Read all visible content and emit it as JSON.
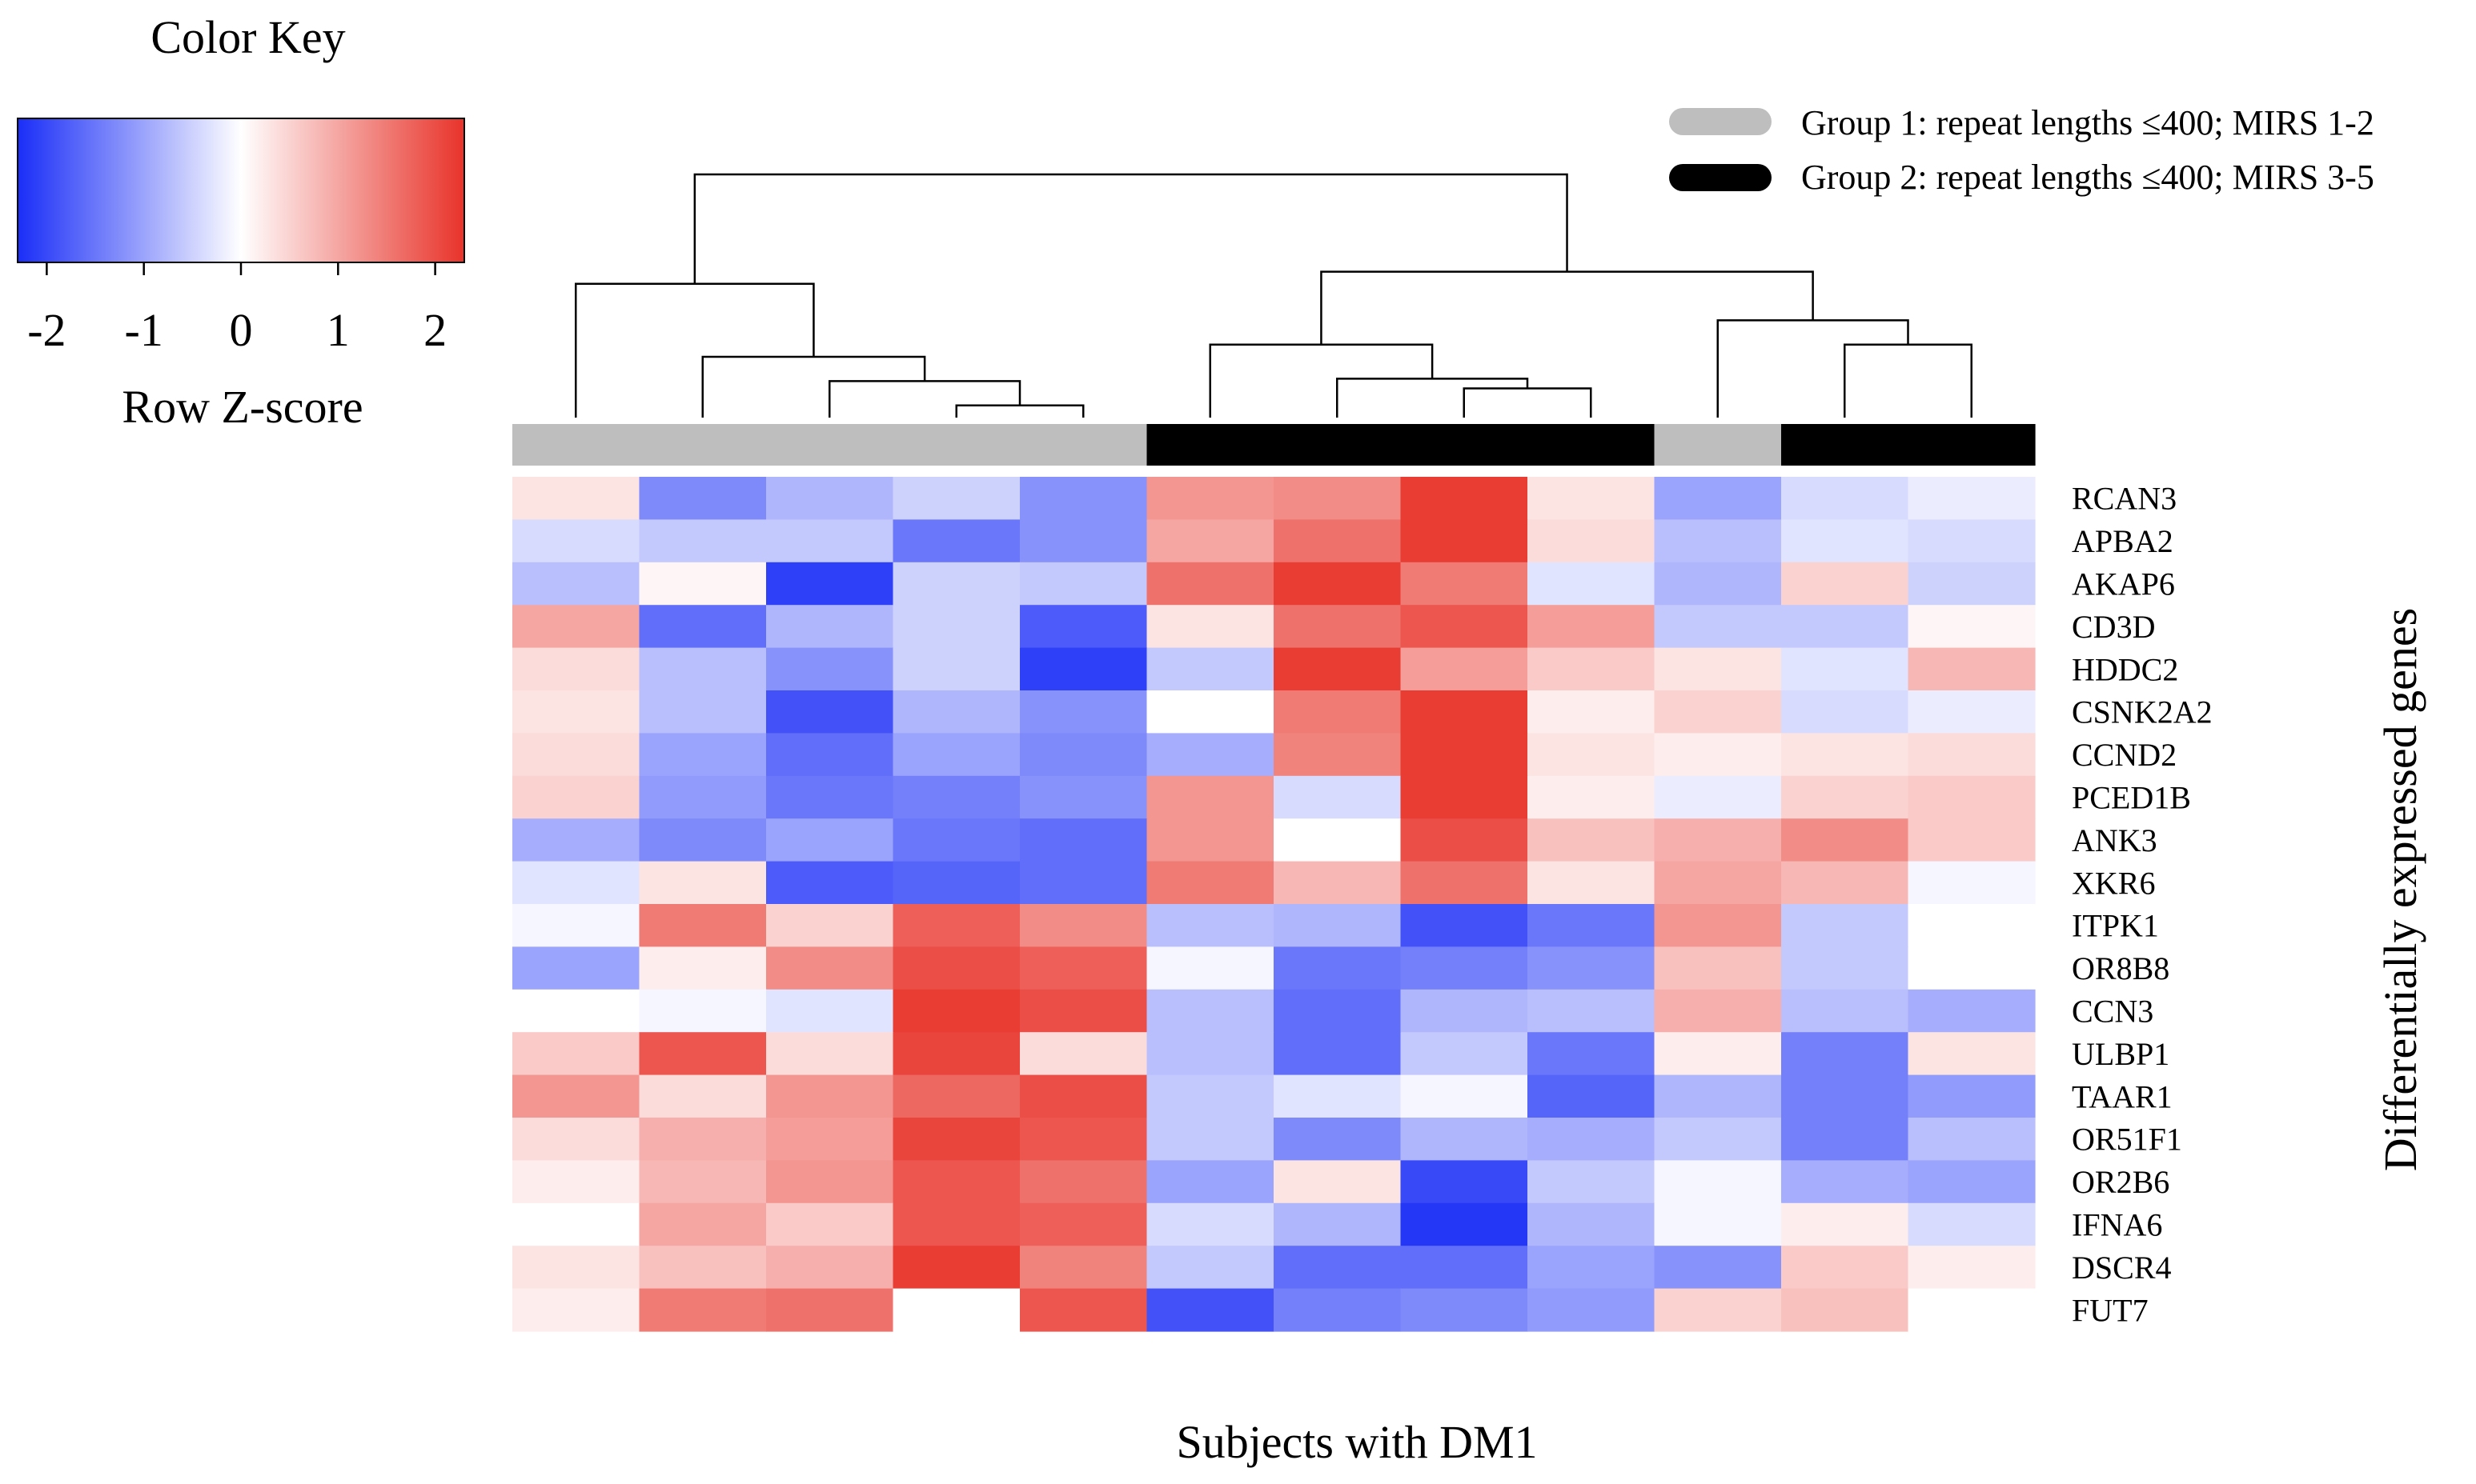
{
  "chart_data": {
    "type": "heatmap",
    "xlabel": "Subjects with DM1",
    "ylabel": "Differentially expressed genes",
    "color_key": {
      "title": "Color Key",
      "label": "Row Z-score",
      "ticks": [
        "-2",
        "-1",
        "0",
        "1",
        "2"
      ],
      "range": [
        -2.3,
        2.3
      ],
      "low_color": "#1a2ef7",
      "mid_color": "#ffffff",
      "high_color": "#e8332a"
    },
    "legend": [
      {
        "label": "Group 1: repeat lengths ≤400; MIRS 1-2",
        "color": "#bebebe"
      },
      {
        "label": "Group 2: repeat lengths ≤400; MIRS 3-5",
        "color": "#000000"
      }
    ],
    "column_groups": [
      1,
      1,
      1,
      1,
      1,
      2,
      2,
      2,
      2,
      1,
      2,
      2
    ],
    "genes": [
      "RCAN3",
      "APBA2",
      "AKAP6",
      "CD3D",
      "HDDC2",
      "CSNK2A2",
      "CCND2",
      "PCED1B",
      "ANK3",
      "XKR6",
      "ITPK1",
      "OR8B8",
      "CCN3",
      "ULBP1",
      "TAAR1",
      "OR51F1",
      "OR2B6",
      "IFNA6",
      "DSCR4",
      "FUT7"
    ],
    "values": [
      [
        0.3,
        -1.3,
        -0.8,
        -0.5,
        -1.2,
        1.2,
        1.3,
        2.2,
        0.3,
        -1.0,
        -0.4,
        -0.2
      ],
      [
        -0.4,
        -0.6,
        -0.6,
        -1.5,
        -1.2,
        1.0,
        1.6,
        2.2,
        0.4,
        -0.7,
        -0.3,
        -0.4
      ],
      [
        -0.7,
        0.1,
        -2.1,
        -0.5,
        -0.6,
        1.6,
        2.2,
        1.5,
        -0.3,
        -0.8,
        0.5,
        -0.5
      ],
      [
        1.0,
        -1.6,
        -0.8,
        -0.5,
        -1.8,
        0.3,
        1.6,
        1.9,
        1.1,
        -0.6,
        -0.6,
        0.1
      ],
      [
        0.4,
        -0.7,
        -1.2,
        -0.5,
        -2.1,
        -0.6,
        2.2,
        1.1,
        0.6,
        0.3,
        -0.3,
        0.8
      ],
      [
        0.3,
        -0.7,
        -1.9,
        -0.8,
        -1.2,
        0.0,
        1.5,
        2.2,
        0.2,
        0.5,
        -0.4,
        -0.2
      ],
      [
        0.4,
        -1.0,
        -1.6,
        -1.0,
        -1.3,
        -0.9,
        1.4,
        2.2,
        0.3,
        0.2,
        0.3,
        0.4
      ],
      [
        0.5,
        -1.1,
        -1.5,
        -1.4,
        -1.2,
        1.2,
        -0.4,
        2.2,
        0.2,
        -0.2,
        0.5,
        0.6
      ],
      [
        -0.9,
        -1.3,
        -1.0,
        -1.5,
        -1.6,
        1.2,
        0.0,
        2.0,
        0.7,
        0.9,
        1.3,
        0.6
      ],
      [
        -0.3,
        0.3,
        -1.8,
        -1.7,
        -1.6,
        1.5,
        0.8,
        1.6,
        0.3,
        1.0,
        0.8,
        -0.1
      ],
      [
        -0.1,
        1.5,
        0.5,
        1.8,
        1.3,
        -0.7,
        -0.8,
        -1.9,
        -1.5,
        1.2,
        -0.6,
        0.0
      ],
      [
        -1.0,
        0.2,
        1.3,
        2.0,
        1.8,
        -0.1,
        -1.5,
        -1.4,
        -1.2,
        0.7,
        -0.6,
        0.0
      ],
      [
        0.0,
        -0.1,
        -0.3,
        2.2,
        2.0,
        -0.7,
        -1.6,
        -0.8,
        -0.7,
        0.9,
        -0.7,
        -0.9
      ],
      [
        0.6,
        1.9,
        0.4,
        2.1,
        0.4,
        -0.7,
        -1.6,
        -0.6,
        -1.5,
        0.2,
        -1.4,
        0.3
      ],
      [
        1.2,
        0.4,
        1.2,
        1.7,
        2.0,
        -0.6,
        -0.3,
        -0.1,
        -1.7,
        -0.8,
        -1.4,
        -1.1
      ],
      [
        0.4,
        0.9,
        1.1,
        2.1,
        1.9,
        -0.6,
        -1.3,
        -0.8,
        -0.9,
        -0.6,
        -1.4,
        -0.7
      ],
      [
        0.2,
        0.8,
        1.2,
        1.9,
        1.6,
        -1.0,
        0.3,
        -2.0,
        -0.6,
        -0.1,
        -0.9,
        -1.0
      ],
      [
        0.0,
        1.0,
        0.6,
        1.9,
        1.8,
        -0.4,
        -0.8,
        -2.2,
        -0.8,
        -0.1,
        0.2,
        -0.4
      ],
      [
        0.3,
        0.7,
        0.9,
        2.2,
        1.4,
        -0.6,
        -1.6,
        -1.6,
        -1.0,
        -1.2,
        0.6,
        0.2
      ],
      [
        0.2,
        1.5,
        1.6,
        0.0,
        1.9,
        -1.9,
        -1.4,
        -1.3,
        -1.1,
        0.5,
        0.7,
        0.0
      ]
    ],
    "dendrogram": {
      "left": 0,
      "right": 1,
      "children": [
        {
          "left": 0,
          "right": 1,
          "children": [
            {
              "leaf": 0
            },
            {
              "left": 0,
              "right": 1,
              "children": [
                {
                  "leaf": 1
                },
                {
                  "left": 0,
                  "right": 1,
                  "children": [
                    {
                      "leaf": 2
                    },
                    {
                      "left": 0,
                      "right": 1,
                      "children": [
                        {
                          "leaf": 3
                        },
                        {
                          "leaf": 4
                        }
                      ],
                      "height": 0.05
                    }
                  ],
                  "height": 0.15
                }
              ],
              "height": 0.25
            }
          ],
          "height": 0.55
        },
        {
          "left": 0,
          "right": 1,
          "children": [
            {
              "left": 0,
              "right": 1,
              "children": [
                {
                  "leaf": 5
                },
                {
                  "left": 0,
                  "right": 1,
                  "children": [
                    {
                      "leaf": 6
                    },
                    {
                      "left": 0,
                      "right": 1,
                      "children": [
                        {
                          "leaf": 7
                        },
                        {
                          "leaf": 8
                        }
                      ],
                      "height": 0.12
                    }
                  ],
                  "height": 0.16
                }
              ],
              "height": 0.3
            },
            {
              "left": 0,
              "right": 1,
              "children": [
                {
                  "leaf": 9
                },
                {
                  "left": 0,
                  "right": 1,
                  "children": [
                    {
                      "leaf": 10
                    },
                    {
                      "leaf": 11
                    }
                  ],
                  "height": 0.3
                }
              ],
              "height": 0.4
            }
          ],
          "height": 0.6
        }
      ],
      "height": 1.0
    }
  }
}
